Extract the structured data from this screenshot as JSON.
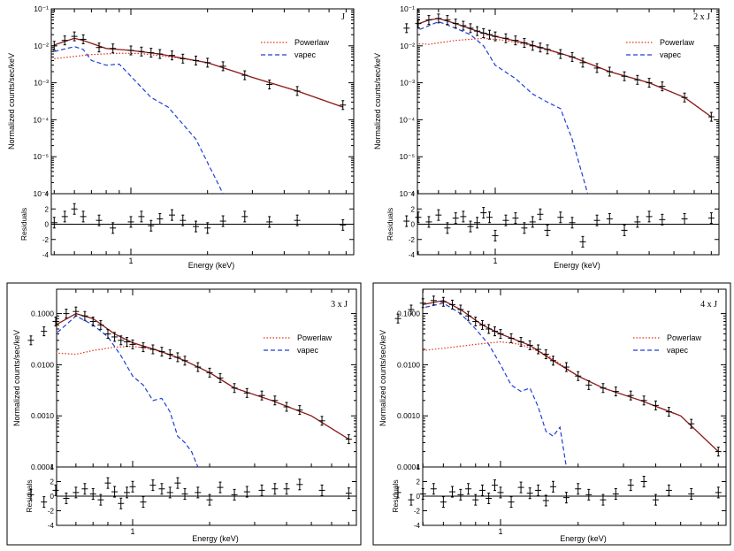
{
  "panels": [
    {
      "id": "J",
      "tag": "J",
      "ylabel": "Normalized counts/sec/keV",
      "resid_label": "Residuals",
      "xlabel": "Energy (keV)",
      "x_ticks": [
        "1"
      ],
      "y_scale": "log",
      "y_range": [
        1e-06,
        0.1
      ],
      "y_ticks": [
        "10⁻¹",
        "10⁻²",
        "10⁻³",
        "10⁻⁴",
        "10⁻⁵",
        "10⁻⁶"
      ],
      "y_tick_values": [
        0.1,
        0.01,
        0.001,
        0.0001,
        1e-05,
        1e-06
      ],
      "resid_range": [
        -4,
        4
      ],
      "resid_ticks": [
        "4",
        "2",
        "0",
        "-2",
        "-4"
      ],
      "legend_position": "top-right",
      "legend": [
        "Powerlaw",
        "vapec"
      ],
      "data": {
        "energy_keV": [
          0.5,
          0.55,
          0.6,
          0.65,
          0.75,
          0.85,
          1.0,
          1.1,
          1.2,
          1.3,
          1.45,
          1.6,
          1.8,
          2.0,
          2.3,
          2.8,
          3.5,
          4.5,
          6.8
        ],
        "counts": [
          0.01,
          0.014,
          0.018,
          0.015,
          0.009,
          0.0085,
          0.0075,
          0.007,
          0.0065,
          0.006,
          0.0055,
          0.0045,
          0.004,
          0.0035,
          0.0028,
          0.0016,
          0.0009,
          0.0006,
          0.00025
        ],
        "residuals": [
          0.2,
          1.0,
          2.0,
          1.0,
          0.5,
          -0.5,
          0.3,
          1.0,
          -0.2,
          0.7,
          1.2,
          0.5,
          -0.3,
          -0.5,
          0.4,
          1.0,
          0.3,
          0.5,
          -0.1
        ]
      },
      "model_total": [
        [
          0.5,
          0.0105
        ],
        [
          0.6,
          0.016
        ],
        [
          0.65,
          0.014
        ],
        [
          0.8,
          0.0085
        ],
        [
          1.0,
          0.0075
        ],
        [
          1.3,
          0.006
        ],
        [
          1.6,
          0.0046
        ],
        [
          2.0,
          0.0035
        ],
        [
          3.0,
          0.0014
        ],
        [
          4.5,
          0.0006
        ],
        [
          6.8,
          0.00022
        ]
      ],
      "model_powerlaw": [
        [
          0.5,
          0.0045
        ],
        [
          0.7,
          0.0058
        ],
        [
          0.9,
          0.0063
        ],
        [
          1.1,
          0.0062
        ],
        [
          1.5,
          0.0048
        ],
        [
          2.0,
          0.0035
        ],
        [
          3.0,
          0.0014
        ],
        [
          4.5,
          0.0006
        ],
        [
          6.8,
          0.00022
        ]
      ],
      "model_vapec": [
        [
          0.5,
          0.007
        ],
        [
          0.6,
          0.0095
        ],
        [
          0.65,
          0.008
        ],
        [
          0.7,
          0.004
        ],
        [
          0.8,
          0.003
        ],
        [
          0.9,
          0.0032
        ],
        [
          1.0,
          0.0015
        ],
        [
          1.2,
          0.0004
        ],
        [
          1.4,
          0.00022
        ],
        [
          1.8,
          3e-05
        ],
        [
          2.3,
          1e-06
        ]
      ]
    },
    {
      "id": "2xJ",
      "tag": "2 x J",
      "ylabel": "Normalized counts/sec/keV",
      "resid_label": "Residuals",
      "xlabel": "Energy (keV)",
      "x_ticks": [
        "1"
      ],
      "y_scale": "log",
      "y_range": [
        1e-06,
        0.1
      ],
      "y_ticks": [
        "10⁻¹",
        "10⁻²",
        "10⁻³",
        "10⁻⁴",
        "10⁻⁵",
        "10⁻⁶"
      ],
      "y_tick_values": [
        0.1,
        0.01,
        0.001,
        0.0001,
        1e-05,
        1e-06
      ],
      "resid_range": [
        -4,
        4
      ],
      "resid_ticks": [
        "4",
        "2",
        "0",
        "-2",
        "-4"
      ],
      "legend_position": "top-right",
      "legend": [
        "Powerlaw",
        "vapec"
      ],
      "data": {
        "energy_keV": [
          0.45,
          0.5,
          0.55,
          0.6,
          0.65,
          0.7,
          0.75,
          0.8,
          0.85,
          0.9,
          0.95,
          1.0,
          1.1,
          1.2,
          1.3,
          1.4,
          1.5,
          1.6,
          1.8,
          2.0,
          2.2,
          2.5,
          2.8,
          3.2,
          3.6,
          4.0,
          4.5,
          5.5,
          7.0
        ],
        "counts": [
          0.03,
          0.04,
          0.05,
          0.055,
          0.05,
          0.04,
          0.035,
          0.03,
          0.025,
          0.022,
          0.02,
          0.018,
          0.016,
          0.014,
          0.012,
          0.01,
          0.009,
          0.008,
          0.006,
          0.005,
          0.0035,
          0.0025,
          0.002,
          0.0015,
          0.0012,
          0.001,
          0.0008,
          0.0004,
          0.00012
        ],
        "residuals": [
          0.4,
          0.9,
          0.3,
          1.2,
          -0.5,
          0.8,
          1.0,
          -0.3,
          0.2,
          1.5,
          0.9,
          -1.5,
          0.5,
          0.8,
          -0.5,
          0.3,
          1.3,
          -0.8,
          0.9,
          0.2,
          -2.3,
          0.5,
          0.7,
          -0.8,
          0.3,
          1.0,
          0.6,
          0.7,
          0.8
        ]
      },
      "model_total": [
        [
          0.45,
          0.03
        ],
        [
          0.55,
          0.05
        ],
        [
          0.6,
          0.055
        ],
        [
          0.7,
          0.04
        ],
        [
          0.85,
          0.025
        ],
        [
          1.0,
          0.018
        ],
        [
          1.3,
          0.012
        ],
        [
          1.6,
          0.008
        ],
        [
          2.0,
          0.005
        ],
        [
          2.8,
          0.002
        ],
        [
          4.0,
          0.001
        ],
        [
          5.5,
          0.0004
        ],
        [
          7.0,
          0.00012
        ]
      ],
      "model_powerlaw": [
        [
          0.45,
          0.012
        ],
        [
          0.55,
          0.011
        ],
        [
          0.7,
          0.014
        ],
        [
          0.9,
          0.016
        ],
        [
          1.1,
          0.014
        ],
        [
          1.4,
          0.01
        ],
        [
          2.0,
          0.005
        ],
        [
          2.8,
          0.002
        ],
        [
          4.0,
          0.001
        ],
        [
          5.5,
          0.0004
        ],
        [
          7.0,
          0.00012
        ]
      ],
      "model_vapec": [
        [
          0.45,
          0.02
        ],
        [
          0.55,
          0.035
        ],
        [
          0.6,
          0.045
        ],
        [
          0.7,
          0.03
        ],
        [
          0.8,
          0.02
        ],
        [
          0.9,
          0.01
        ],
        [
          1.0,
          0.003
        ],
        [
          1.2,
          0.0013
        ],
        [
          1.4,
          0.0005
        ],
        [
          1.6,
          0.0003
        ],
        [
          1.8,
          0.0002
        ],
        [
          2.0,
          3e-05
        ],
        [
          2.3,
          1e-06
        ]
      ]
    },
    {
      "id": "3xJ",
      "tag": "3 x J",
      "ylabel": "Normalized counts/sec/keV",
      "resid_label": "Residuals",
      "xlabel": "Energy (keV)",
      "x_ticks": [
        "1"
      ],
      "y_scale": "log",
      "y_range": [
        0.0001,
        0.3
      ],
      "y_ticks": [
        "0.1000",
        "0.0100",
        "0.0010",
        "0.0001"
      ],
      "y_tick_values": [
        0.1,
        0.01,
        0.001,
        0.0001
      ],
      "resid_range": [
        -4,
        4
      ],
      "resid_ticks": [
        "4",
        "2",
        "0",
        "-2",
        "-4"
      ],
      "legend_position": "top-right",
      "legend": [
        "Powerlaw",
        "vapec"
      ],
      "data": {
        "energy_keV": [
          0.4,
          0.45,
          0.5,
          0.55,
          0.6,
          0.65,
          0.7,
          0.75,
          0.8,
          0.85,
          0.9,
          0.95,
          1.0,
          1.1,
          1.2,
          1.3,
          1.4,
          1.5,
          1.6,
          1.8,
          2.0,
          2.2,
          2.5,
          2.8,
          3.2,
          3.6,
          4.0,
          4.5,
          5.5,
          7.0
        ],
        "counts": [
          0.03,
          0.045,
          0.07,
          0.1,
          0.11,
          0.09,
          0.07,
          0.06,
          0.04,
          0.035,
          0.03,
          0.028,
          0.025,
          0.022,
          0.02,
          0.018,
          0.016,
          0.014,
          0.012,
          0.009,
          0.007,
          0.0055,
          0.0035,
          0.0028,
          0.0025,
          0.002,
          0.0015,
          0.0013,
          0.0008,
          0.00035
        ],
        "residuals": [
          0.2,
          -0.8,
          0.8,
          -0.3,
          0.5,
          1.0,
          0.3,
          -0.5,
          1.8,
          0.6,
          -1.0,
          0.5,
          1.3,
          -0.8,
          1.5,
          1.0,
          0.5,
          1.8,
          0.3,
          0.5,
          -0.5,
          1.2,
          0.2,
          0.6,
          0.8,
          1.0,
          1.0,
          1.6,
          0.8,
          0.4
        ]
      },
      "model_total": [
        [
          0.4,
          0.025
        ],
        [
          0.5,
          0.06
        ],
        [
          0.6,
          0.1
        ],
        [
          0.7,
          0.08
        ],
        [
          0.85,
          0.04
        ],
        [
          1.0,
          0.027
        ],
        [
          1.3,
          0.018
        ],
        [
          1.6,
          0.012
        ],
        [
          2.0,
          0.007
        ],
        [
          2.5,
          0.0035
        ],
        [
          3.5,
          0.002
        ],
        [
          5.0,
          0.001
        ],
        [
          7.0,
          0.00035
        ]
      ],
      "model_powerlaw": [
        [
          0.4,
          0.016
        ],
        [
          0.5,
          0.017
        ],
        [
          0.6,
          0.016
        ],
        [
          0.7,
          0.019
        ],
        [
          0.85,
          0.022
        ],
        [
          1.0,
          0.023
        ],
        [
          1.2,
          0.02
        ],
        [
          1.5,
          0.014
        ],
        [
          2.0,
          0.007
        ],
        [
          2.5,
          0.0035
        ],
        [
          3.5,
          0.002
        ],
        [
          5.0,
          0.001
        ],
        [
          7.0,
          0.00035
        ]
      ],
      "model_vapec": [
        [
          0.4,
          0.015
        ],
        [
          0.5,
          0.04
        ],
        [
          0.6,
          0.09
        ],
        [
          0.7,
          0.06
        ],
        [
          0.8,
          0.035
        ],
        [
          0.9,
          0.015
        ],
        [
          1.0,
          0.006
        ],
        [
          1.1,
          0.004
        ],
        [
          1.2,
          0.002
        ],
        [
          1.3,
          0.0022
        ],
        [
          1.4,
          0.0012
        ],
        [
          1.5,
          0.0004
        ],
        [
          1.6,
          0.0003
        ],
        [
          1.7,
          0.0002
        ],
        [
          1.8,
          0.0001
        ]
      ]
    },
    {
      "id": "4xJ",
      "tag": "4 x J",
      "ylabel": "Normalized counts/sec/keV",
      "resid_label": "Residuals",
      "xlabel": "Energy (keV)",
      "x_ticks": [
        "1"
      ],
      "y_scale": "log",
      "y_range": [
        0.0001,
        0.3
      ],
      "y_ticks": [
        "0.1000",
        "0.0100",
        "0.0010",
        "0.0001"
      ],
      "y_tick_values": [
        0.1,
        0.01,
        0.001,
        0.0001
      ],
      "resid_range": [
        -4,
        4
      ],
      "resid_ticks": [
        "4",
        "2",
        "0",
        "-2",
        "-4"
      ],
      "legend_position": "top-right",
      "legend": [
        "Powerlaw",
        "vapec"
      ],
      "data": {
        "energy_keV": [
          0.4,
          0.45,
          0.5,
          0.55,
          0.6,
          0.65,
          0.7,
          0.75,
          0.8,
          0.85,
          0.9,
          0.95,
          1.0,
          1.1,
          1.2,
          1.3,
          1.4,
          1.5,
          1.6,
          1.8,
          2.0,
          2.2,
          2.5,
          2.8,
          3.2,
          3.6,
          4.0,
          4.5,
          5.5,
          7.0
        ],
        "counts": [
          0.08,
          0.12,
          0.16,
          0.18,
          0.17,
          0.15,
          0.12,
          0.09,
          0.07,
          0.06,
          0.05,
          0.045,
          0.04,
          0.033,
          0.028,
          0.024,
          0.02,
          0.016,
          0.012,
          0.009,
          0.006,
          0.004,
          0.0035,
          0.003,
          0.0025,
          0.002,
          0.0016,
          0.0012,
          0.0007,
          0.0002
        ],
        "residuals": [
          0.5,
          -0.5,
          0.3,
          1.0,
          -0.8,
          0.6,
          0.2,
          1.0,
          -0.5,
          0.8,
          -0.3,
          1.5,
          0.5,
          -0.8,
          1.2,
          0.4,
          0.8,
          -0.6,
          1.3,
          -0.2,
          1.0,
          0.2,
          -0.5,
          0.3,
          1.5,
          2.0,
          -0.5,
          0.8,
          0.3,
          0.5
        ]
      },
      "model_total": [
        [
          0.4,
          0.07
        ],
        [
          0.5,
          0.15
        ],
        [
          0.6,
          0.18
        ],
        [
          0.7,
          0.12
        ],
        [
          0.85,
          0.06
        ],
        [
          1.0,
          0.04
        ],
        [
          1.3,
          0.024
        ],
        [
          1.6,
          0.012
        ],
        [
          2.0,
          0.006
        ],
        [
          2.5,
          0.0035
        ],
        [
          3.5,
          0.002
        ],
        [
          5.0,
          0.001
        ],
        [
          7.0,
          0.0002
        ]
      ],
      "model_powerlaw": [
        [
          0.4,
          0.02
        ],
        [
          0.5,
          0.019
        ],
        [
          0.6,
          0.021
        ],
        [
          0.8,
          0.025
        ],
        [
          1.0,
          0.028
        ],
        [
          1.2,
          0.025
        ],
        [
          1.5,
          0.016
        ],
        [
          2.0,
          0.006
        ],
        [
          2.5,
          0.0035
        ],
        [
          3.5,
          0.002
        ],
        [
          5.0,
          0.001
        ],
        [
          7.0,
          0.0002
        ]
      ],
      "model_vapec": [
        [
          0.4,
          0.05
        ],
        [
          0.5,
          0.13
        ],
        [
          0.6,
          0.16
        ],
        [
          0.7,
          0.1
        ],
        [
          0.8,
          0.05
        ],
        [
          0.9,
          0.025
        ],
        [
          1.0,
          0.01
        ],
        [
          1.1,
          0.004
        ],
        [
          1.2,
          0.003
        ],
        [
          1.3,
          0.0035
        ],
        [
          1.4,
          0.0015
        ],
        [
          1.5,
          0.0005
        ],
        [
          1.6,
          0.0004
        ],
        [
          1.7,
          0.0006
        ],
        [
          1.8,
          0.0001
        ]
      ]
    }
  ],
  "chart_data": [
    {
      "type": "scatter",
      "title": "J",
      "xlabel": "Energy (keV)",
      "ylabel": "Normalized counts/sec/keV",
      "y_scale": "log",
      "ylim": [
        1e-06,
        0.1
      ],
      "series": [
        {
          "name": "Powerlaw"
        },
        {
          "name": "vapec"
        }
      ]
    },
    {
      "type": "scatter",
      "title": "2 x J",
      "xlabel": "Energy (keV)",
      "ylabel": "Normalized counts/sec/keV",
      "y_scale": "log",
      "ylim": [
        1e-06,
        0.1
      ],
      "series": [
        {
          "name": "Powerlaw"
        },
        {
          "name": "vapec"
        }
      ]
    },
    {
      "type": "scatter",
      "title": "3 x J",
      "xlabel": "Energy (keV)",
      "ylabel": "Normalized counts/sec/keV",
      "y_scale": "log",
      "ylim": [
        0.0001,
        0.3
      ],
      "series": [
        {
          "name": "Powerlaw"
        },
        {
          "name": "vapec"
        }
      ]
    },
    {
      "type": "scatter",
      "title": "4 x J",
      "xlabel": "Energy (keV)",
      "ylabel": "Normalized counts/sec/keV",
      "y_scale": "log",
      "ylim": [
        0.0001,
        0.3
      ],
      "series": [
        {
          "name": "Powerlaw"
        },
        {
          "name": "vapec"
        }
      ]
    }
  ],
  "colors": {
    "data": "#000000",
    "total_model": "#8b1a1a",
    "powerlaw": "#e0301e",
    "vapec": "#1f3fd8"
  }
}
